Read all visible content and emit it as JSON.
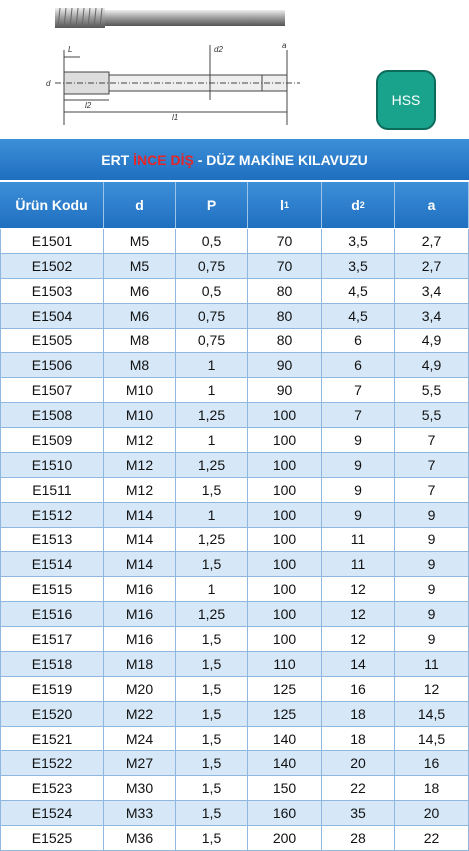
{
  "drawing": {
    "labels": {
      "L": "L",
      "l2": "l2",
      "l1": "l1",
      "d2": "d2",
      "a": "a",
      "d": "d"
    },
    "badge": "HSS"
  },
  "title": {
    "parts": [
      "ERT ",
      "İNCE DİŞ",
      " - DÜZ MAKİNE KILAVUZU"
    ]
  },
  "table": {
    "header": [
      {
        "text": "Ürün Kodu"
      },
      {
        "text": "d"
      },
      {
        "text": "P"
      },
      {
        "text": "l",
        "sub": "1"
      },
      {
        "text": "d",
        "sub": "2"
      },
      {
        "text": "a"
      }
    ],
    "rows": [
      [
        "E1501",
        "M5",
        "0,5",
        "70",
        "3,5",
        "2,7"
      ],
      [
        "E1502",
        "M5",
        "0,75",
        "70",
        "3,5",
        "2,7"
      ],
      [
        "E1503",
        "M6",
        "0,5",
        "80",
        "4,5",
        "3,4"
      ],
      [
        "E1504",
        "M6",
        "0,75",
        "80",
        "4,5",
        "3,4"
      ],
      [
        "E1505",
        "M8",
        "0,75",
        "80",
        "6",
        "4,9"
      ],
      [
        "E1506",
        "M8",
        "1",
        "90",
        "6",
        "4,9"
      ],
      [
        "E1507",
        "M10",
        "1",
        "90",
        "7",
        "5,5"
      ],
      [
        "E1508",
        "M10",
        "1,25",
        "100",
        "7",
        "5,5"
      ],
      [
        "E1509",
        "M12",
        "1",
        "100",
        "9",
        "7"
      ],
      [
        "E1510",
        "M12",
        "1,25",
        "100",
        "9",
        "7"
      ],
      [
        "E1511",
        "M12",
        "1,5",
        "100",
        "9",
        "7"
      ],
      [
        "E1512",
        "M14",
        "1",
        "100",
        "9",
        "9"
      ],
      [
        "E1513",
        "M14",
        "1,25",
        "100",
        "11",
        "9"
      ],
      [
        "E1514",
        "M14",
        "1,5",
        "100",
        "11",
        "9"
      ],
      [
        "E1515",
        "M16",
        "1",
        "100",
        "12",
        "9"
      ],
      [
        "E1516",
        "M16",
        "1,25",
        "100",
        "12",
        "9"
      ],
      [
        "E1517",
        "M16",
        "1,5",
        "100",
        "12",
        "9"
      ],
      [
        "E1518",
        "M18",
        "1,5",
        "110",
        "14",
        "11"
      ],
      [
        "E1519",
        "M20",
        "1,5",
        "125",
        "16",
        "12"
      ],
      [
        "E1520",
        "M22",
        "1,5",
        "125",
        "18",
        "14,5"
      ],
      [
        "E1521",
        "M24",
        "1,5",
        "140",
        "18",
        "14,5"
      ],
      [
        "E1522",
        "M27",
        "1,5",
        "140",
        "20",
        "16"
      ],
      [
        "E1523",
        "M30",
        "1,5",
        "150",
        "22",
        "18"
      ],
      [
        "E1524",
        "M33",
        "1,5",
        "160",
        "35",
        "20"
      ],
      [
        "E1525",
        "M36",
        "1,5",
        "200",
        "28",
        "22"
      ]
    ]
  }
}
